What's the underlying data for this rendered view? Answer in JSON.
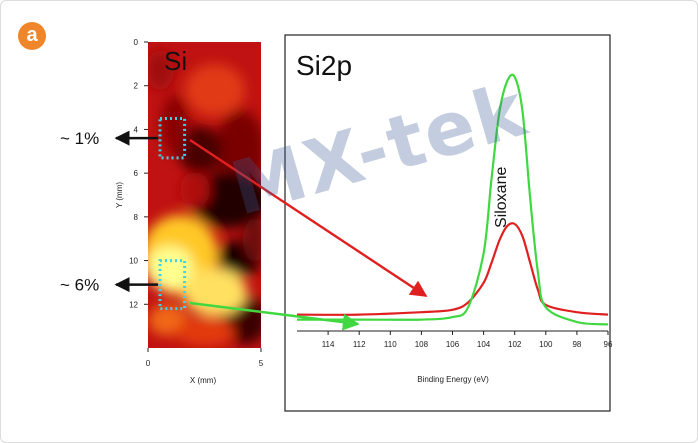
{
  "figure": {
    "panel_label": "a",
    "watermark": "MX-tek"
  },
  "colors": {
    "badge": "#f0862a",
    "marker": "#3dd3e8",
    "red": "#e02020",
    "green": "#40d840"
  },
  "chart_data": [
    {
      "type": "heatmap",
      "title": "Si",
      "xlabel": "X (mm)",
      "ylabel": "Y (mm)",
      "xlim": [
        0,
        5
      ],
      "ylim": [
        0,
        14
      ],
      "x_ticks": [
        "0",
        "5"
      ],
      "y_ticks": [
        "0",
        "2",
        "4",
        "6",
        "8",
        "10",
        "12"
      ],
      "colormap": [
        "#000000",
        "#6b0000",
        "#c01010",
        "#ff5010",
        "#ffd030",
        "#ffffd0"
      ],
      "regions": [
        {
          "label": "~ 1%",
          "x_range": [
            0,
            1
          ],
          "y_range": [
            3.5,
            5.3
          ]
        },
        {
          "label": "~ 6%",
          "x_range": [
            0,
            1
          ],
          "y_range": [
            10,
            12.2
          ]
        }
      ]
    },
    {
      "type": "line",
      "title": "Si2p",
      "xlabel": "Binding Energy (eV)",
      "xlim": [
        116,
        96
      ],
      "x_ticks": [
        114,
        112,
        110,
        108,
        106,
        104,
        102,
        100,
        98,
        96
      ],
      "annotations": [
        "Siloxane"
      ],
      "series": [
        {
          "color": "#e02020",
          "x": [
            116,
            112,
            108,
            106,
            105,
            104,
            103.5,
            103,
            102.5,
            102,
            101.5,
            101,
            100.5,
            100,
            98,
            96
          ],
          "y": [
            0.03,
            0.03,
            0.04,
            0.05,
            0.08,
            0.16,
            0.24,
            0.33,
            0.39,
            0.4,
            0.35,
            0.24,
            0.13,
            0.07,
            0.04,
            0.03
          ]
        },
        {
          "color": "#40d840",
          "x": [
            116,
            112,
            108,
            106,
            105,
            104,
            103.5,
            103,
            102.5,
            102,
            101.5,
            101,
            100.5,
            100,
            98,
            96
          ],
          "y": [
            0.01,
            0.01,
            0.01,
            0.02,
            0.06,
            0.28,
            0.58,
            0.85,
            0.98,
            1.0,
            0.86,
            0.5,
            0.2,
            0.06,
            0.0,
            -0.01
          ]
        }
      ]
    }
  ]
}
